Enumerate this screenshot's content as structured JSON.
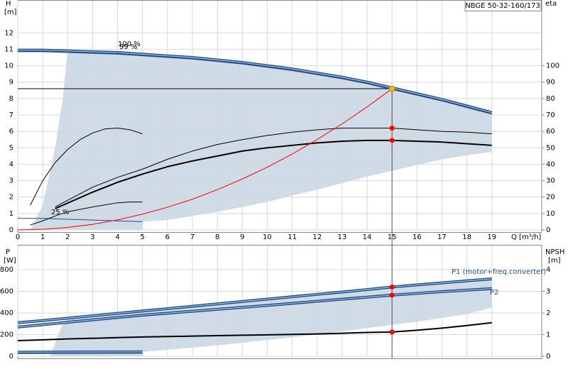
{
  "chart_data": [
    {
      "type": "line",
      "title": "NBGE 50-32-160/173",
      "y_label": "H",
      "y_unit": "[m]",
      "y2_label": "eta",
      "x_label": "Q [m³/h]",
      "xlim": [
        0,
        21
      ],
      "xticks": [
        0,
        1,
        2,
        3,
        4,
        5,
        6,
        7,
        8,
        9,
        10,
        11,
        12,
        13,
        14,
        15,
        16,
        17,
        18,
        19
      ],
      "ylim": [
        0,
        14
      ],
      "yticks": [
        0,
        1,
        2,
        3,
        4,
        5,
        6,
        7,
        8,
        9,
        10,
        11,
        12
      ],
      "y2lim": [
        0,
        140
      ],
      "y2ticks": [
        0,
        10,
        20,
        30,
        40,
        50,
        60,
        70,
        80,
        90,
        100
      ],
      "grid": true,
      "area": {
        "color": "#cfdbe6",
        "x": [
          0.5,
          1,
          1.5,
          1.8,
          2,
          4,
          6,
          8,
          10,
          12,
          14,
          15,
          16,
          17,
          18,
          19,
          19,
          18,
          17,
          16,
          15,
          14,
          13,
          12,
          11,
          10,
          9,
          8,
          7,
          6,
          5,
          5
        ],
        "y": [
          0,
          1.5,
          5,
          8,
          10.9,
          10.8,
          10.6,
          10.35,
          10,
          9.55,
          9,
          8.65,
          8.3,
          7.95,
          7.55,
          7.05,
          4.75,
          4.55,
          4.3,
          3.95,
          3.6,
          3.25,
          2.85,
          2.45,
          2.1,
          1.7,
          1.4,
          1.1,
          0.85,
          0.6,
          0.5,
          0
        ]
      },
      "series": [
        {
          "color": "#1f4e8c",
          "style": "double",
          "x": [
            0,
            1,
            2,
            3,
            4,
            5,
            6,
            7,
            8,
            9,
            10,
            11,
            12,
            13,
            14,
            15,
            16,
            17,
            18,
            19
          ],
          "values": [
            10.95,
            10.95,
            10.9,
            10.85,
            10.8,
            10.7,
            10.6,
            10.5,
            10.35,
            10.2,
            10,
            9.8,
            9.55,
            9.3,
            9,
            8.65,
            8.3,
            7.95,
            7.55,
            7.15
          ]
        },
        {
          "color": "#1f4e8c",
          "style": "thin",
          "x": [
            0,
            1,
            2,
            3,
            4,
            5,
            6,
            7,
            8,
            9,
            10,
            11,
            12,
            13,
            14,
            15,
            16,
            17,
            18,
            19
          ],
          "values": [
            10.85,
            10.85,
            10.8,
            10.75,
            10.7,
            10.6,
            10.5,
            10.4,
            10.25,
            10.1,
            9.9,
            9.7,
            9.45,
            9.2,
            8.9,
            8.55,
            8.2,
            7.85,
            7.45,
            7.05
          ]
        },
        {
          "color": "#1f4e8c",
          "style": "thin",
          "x": [
            0,
            1,
            2,
            3,
            4,
            5
          ],
          "values": [
            0.7,
            0.7,
            0.65,
            0.6,
            0.55,
            0.5
          ]
        },
        {
          "color": "#000000",
          "style": "thin",
          "axis": "y2",
          "x": [
            1.5,
            3,
            4,
            5,
            6,
            7,
            8,
            9,
            10,
            11,
            12,
            13,
            14,
            15,
            16,
            17,
            18,
            19
          ],
          "values": [
            14,
            26,
            32,
            37,
            43,
            48,
            52,
            55,
            57.5,
            59.5,
            61,
            62,
            62,
            62,
            61,
            60,
            59.5,
            58.5
          ]
        },
        {
          "color": "#000000",
          "style": "thick",
          "axis": "y2",
          "x": [
            1.5,
            3,
            4,
            5,
            6,
            7,
            8,
            9,
            10,
            11,
            12,
            13,
            14,
            15,
            16,
            17,
            18,
            19
          ],
          "values": [
            13,
            23,
            29,
            34,
            38.5,
            42,
            45,
            48,
            50,
            51.5,
            53,
            54,
            54.5,
            54.5,
            54,
            53.5,
            52.5,
            51.5
          ]
        },
        {
          "color": "#000000",
          "style": "thin",
          "axis": "y2",
          "x": [
            0.5,
            1,
            1.5,
            2,
            2.5,
            3,
            3.5,
            4,
            4.5,
            5
          ],
          "values": [
            15,
            30,
            41,
            49,
            55,
            59,
            61.5,
            62,
            61,
            58.5
          ]
        },
        {
          "color": "#000000",
          "style": "thin",
          "axis": "y2",
          "x": [
            0.5,
            1,
            1.5,
            2,
            3,
            4,
            4.5,
            5
          ],
          "values": [
            3,
            5.5,
            8.5,
            11,
            14,
            16.5,
            17,
            17
          ]
        },
        {
          "color": "#ff0000",
          "style": "thin",
          "x": [
            0,
            1,
            2,
            3,
            4,
            5,
            6,
            7,
            8,
            9,
            10,
            11,
            12,
            13,
            14,
            15
          ],
          "values": [
            0,
            0.04,
            0.15,
            0.34,
            0.61,
            0.96,
            1.38,
            1.87,
            2.45,
            3.1,
            3.82,
            4.62,
            5.5,
            6.46,
            7.49,
            8.6
          ]
        }
      ],
      "duty_point": {
        "x": 15,
        "y": 8.6,
        "color": "#f5b800"
      },
      "points": [
        {
          "x": 15,
          "y": 62,
          "axis": "y2",
          "color": "#ff0000"
        },
        {
          "x": 15,
          "y": 54.5,
          "axis": "y2",
          "color": "#ff0000"
        }
      ],
      "annotations": [
        "100 %",
        "99 %",
        "25 %"
      ]
    },
    {
      "type": "line",
      "y_label": "P",
      "y_unit": "[W]",
      "y2_label": "NPSH",
      "y2_unit": "[m]",
      "xlim": [
        0,
        21
      ],
      "xticks": [
        0,
        1,
        2,
        3,
        4,
        5,
        6,
        7,
        8,
        9,
        10,
        11,
        12,
        13,
        14,
        15,
        16,
        17,
        18,
        19
      ],
      "ylim": [
        0,
        1030
      ],
      "yticks": [
        0,
        200,
        400,
        600,
        800
      ],
      "y2lim": [
        0,
        5.15
      ],
      "y2ticks": [
        0,
        1,
        2,
        3,
        4
      ],
      "grid": true,
      "area": {
        "color": "#cfdbe6",
        "x": [
          1.3,
          1.8,
          2,
          5,
          8,
          11,
          14,
          15,
          17,
          19,
          19,
          18,
          16,
          14,
          12,
          10,
          8,
          5,
          5
        ],
        "y": [
          0,
          300,
          350,
          418,
          484,
          550,
          616,
          640,
          678,
          715,
          450,
          390,
          320,
          260,
          200,
          150,
          100,
          40,
          0
        ]
      },
      "series": [
        {
          "name": "P1 (motor+freq.converter)",
          "color": "#1f4e8c",
          "style": "double",
          "x": [
            0,
            1,
            2,
            3,
            4,
            5,
            6,
            7,
            8,
            9,
            10,
            11,
            12,
            13,
            14,
            15,
            16,
            17,
            18,
            19
          ],
          "values": [
            310,
            330,
            352,
            374,
            396,
            418,
            440,
            462,
            484,
            506,
            528,
            550,
            572,
            594,
            616,
            640,
            659,
            678,
            697,
            715
          ]
        },
        {
          "name": "P2",
          "color": "#1f4e8c",
          "style": "double",
          "x": [
            0,
            1,
            2,
            3,
            4,
            5,
            6,
            7,
            8,
            9,
            10,
            11,
            12,
            13,
            14,
            15,
            16,
            17,
            18,
            19
          ],
          "values": [
            270,
            292,
            314,
            336,
            358,
            380,
            398,
            416,
            434,
            452,
            470,
            489,
            508,
            527,
            546,
            565,
            581,
            597,
            611,
            625
          ]
        },
        {
          "color": "#1f4e8c",
          "style": "double",
          "x": [
            0,
            5
          ],
          "values": [
            38,
            40
          ]
        },
        {
          "color": "#1f4e8c",
          "style": "thin",
          "x": [
            0,
            5
          ],
          "values": [
            25,
            27
          ]
        },
        {
          "color": "#000000",
          "style": "thick",
          "axis": "y2",
          "x": [
            0,
            1,
            2,
            3,
            4,
            5,
            6,
            7,
            8,
            9,
            10,
            11,
            12,
            13,
            14,
            15,
            16,
            17,
            18,
            19
          ],
          "values": [
            0.72,
            0.76,
            0.8,
            0.83,
            0.86,
            0.89,
            0.91,
            0.93,
            0.95,
            0.97,
            0.99,
            1.01,
            1.03,
            1.06,
            1.1,
            1.12,
            1.2,
            1.3,
            1.42,
            1.55
          ]
        }
      ],
      "points": [
        {
          "x": 15,
          "y": 640,
          "color": "#ff0000"
        },
        {
          "x": 15,
          "y": 565,
          "color": "#ff0000"
        },
        {
          "x": 15,
          "y": 1.12,
          "axis": "y2",
          "color": "#ff0000"
        }
      ]
    }
  ]
}
